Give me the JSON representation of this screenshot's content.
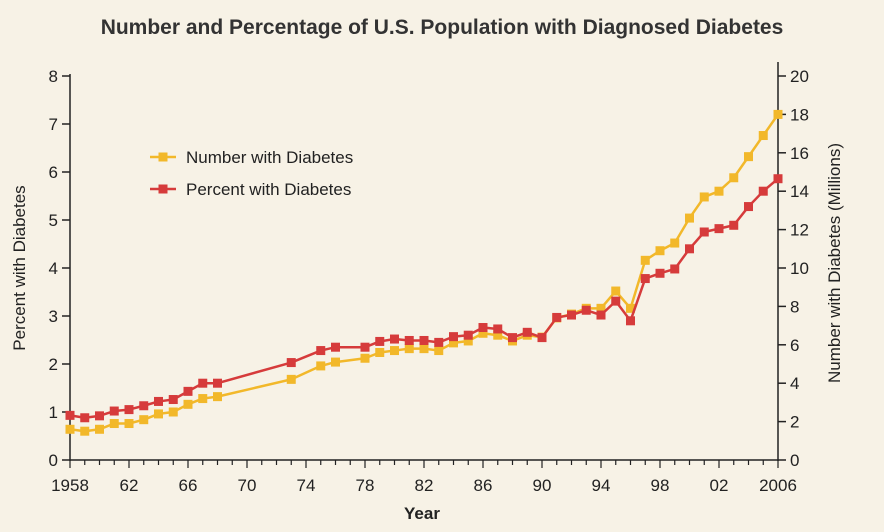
{
  "chart_data": {
    "type": "line",
    "title": "Number and Percentage of U.S. Population with Diagnosed Diabetes",
    "xlabel": "Year",
    "ylabel_left": "Percent with Diabetes",
    "ylabel_right": "Number with Diabetes (Millions)",
    "xlim": [
      1958,
      2006
    ],
    "ylim_left": [
      0,
      8
    ],
    "ylim_right": [
      0,
      20
    ],
    "x_tick_labels": [
      {
        "x": 1958,
        "label": "1958"
      },
      {
        "x": 1962,
        "label": "62"
      },
      {
        "x": 1966,
        "label": "66"
      },
      {
        "x": 1970,
        "label": "70"
      },
      {
        "x": 1974,
        "label": "74"
      },
      {
        "x": 1978,
        "label": "78"
      },
      {
        "x": 1982,
        "label": "82"
      },
      {
        "x": 1986,
        "label": "86"
      },
      {
        "x": 1990,
        "label": "90"
      },
      {
        "x": 1994,
        "label": "94"
      },
      {
        "x": 1998,
        "label": "98"
      },
      {
        "x": 2002,
        "label": "02"
      },
      {
        "x": 2006,
        "label": "2006"
      }
    ],
    "y_left_ticks": [
      "0",
      "1",
      "2",
      "3",
      "4",
      "5",
      "6",
      "7",
      "8"
    ],
    "y_right_ticks": [
      "0",
      "2",
      "4",
      "6",
      "8",
      "10",
      "12",
      "14",
      "16",
      "18",
      "20"
    ],
    "grid": false,
    "legend_position": "upper-left",
    "series": [
      {
        "name": "Number with Diabetes",
        "axis": "right",
        "color": "#f2b82a",
        "x": [
          1958,
          1959,
          1960,
          1961,
          1962,
          1963,
          1964,
          1965,
          1966,
          1967,
          1968,
          1973,
          1975,
          1976,
          1978,
          1979,
          1980,
          1981,
          1982,
          1983,
          1984,
          1985,
          1986,
          1987,
          1988,
          1989,
          1990,
          1991,
          1992,
          1993,
          1994,
          1995,
          1996,
          1997,
          1998,
          1999,
          2000,
          2001,
          2002,
          2003,
          2004,
          2005,
          2006
        ],
        "values": [
          1.6,
          1.5,
          1.6,
          1.9,
          1.9,
          2.1,
          2.4,
          2.5,
          2.9,
          3.2,
          3.3,
          4.2,
          4.9,
          5.1,
          5.3,
          5.6,
          5.7,
          5.8,
          5.8,
          5.7,
          6.1,
          6.2,
          6.6,
          6.5,
          6.2,
          6.5,
          6.4,
          7.4,
          7.6,
          7.9,
          7.9,
          8.8,
          7.9,
          10.4,
          10.9,
          11.3,
          12.6,
          13.7,
          14.0,
          14.7,
          15.8,
          16.9,
          18.0
        ]
      },
      {
        "name": "Percent with Diabetes",
        "axis": "left",
        "color": "#d63b3b",
        "x": [
          1958,
          1959,
          1960,
          1961,
          1962,
          1963,
          1964,
          1965,
          1966,
          1967,
          1968,
          1973,
          1975,
          1976,
          1978,
          1979,
          1980,
          1981,
          1982,
          1983,
          1984,
          1985,
          1986,
          1987,
          1988,
          1989,
          1990,
          1991,
          1992,
          1993,
          1994,
          1995,
          1996,
          1997,
          1998,
          1999,
          2000,
          2001,
          2002,
          2003,
          2004,
          2005,
          2006
        ],
        "values": [
          0.93,
          0.88,
          0.92,
          1.02,
          1.05,
          1.13,
          1.22,
          1.26,
          1.43,
          1.6,
          1.6,
          2.03,
          2.28,
          2.35,
          2.35,
          2.47,
          2.52,
          2.49,
          2.49,
          2.45,
          2.57,
          2.6,
          2.76,
          2.73,
          2.55,
          2.66,
          2.55,
          2.97,
          3.02,
          3.12,
          3.02,
          3.31,
          2.9,
          3.78,
          3.89,
          3.98,
          4.4,
          4.75,
          4.82,
          4.89,
          5.28,
          5.6,
          5.86
        ]
      }
    ]
  }
}
